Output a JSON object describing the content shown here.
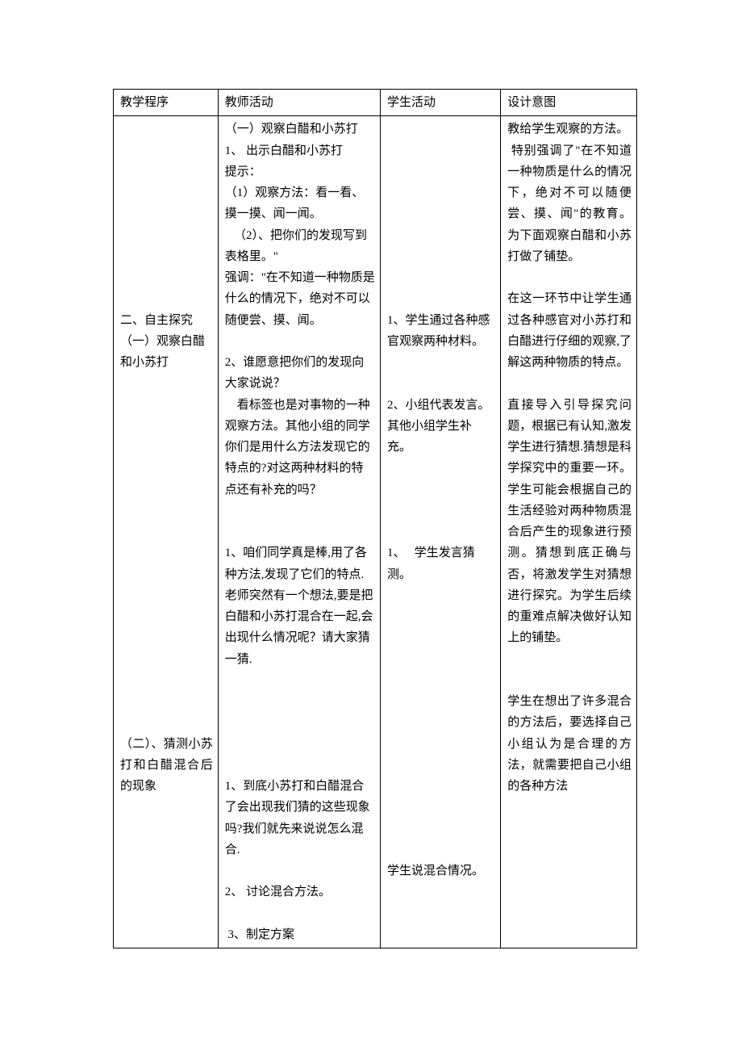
{
  "header": {
    "col1": "教学程序",
    "col2": "教师活动",
    "col3": "学生活动",
    "col4": "设计意图"
  },
  "col1": {
    "sec2_title": "二、自主探究",
    "sec2_sub1": "（一）观察白醋和小苏打",
    "sec2_sub2": "（二）、猜测小苏打和白醋混合后的现象"
  },
  "col2": {
    "obs_title": "（一）观察白醋和小苏打",
    "obs_1": "1、 出示白醋和小苏打",
    "obs_tip": "提示：",
    "obs_m1": "（1）观察方法：看一看、摸一摸、闻一闻。",
    "obs_m2": "   （2）、把你们的发现写到表格里。\"",
    "obs_warn": "强调：\"在不知道一种物质是什么的情况下，绝对不可以随便尝、摸、闻。",
    "obs_2": "2、谁愿意把你们的发现向大家说说？",
    "obs_label": "    看标签也是对事物的一种观察方法。其他小组的同学你们是用什么方法发现它的特点的?对这两种材料的特点还有补充的吗？",
    "guess_1": "1、咱们同学真是棒,用了各种方法,发现了它们的特点.老师突然有一个想法,要是把白醋和小苏打混合在一起,会出现什么情况呢？请大家猜一猜.",
    "mix_1": "1、到底小苏打和白醋混合了会出现我们猜的这些现象吗?我们就先来说说怎么混合.",
    "mix_2": "2、 讨论混合方法。",
    "mix_3": " 3、制定方案"
  },
  "col3": {
    "s1": "1、学生通过各种感官观察两种材料。",
    "s2": "2、小组代表发言。其他小组学生补充。",
    "s3": "1、   学生发言猜测。",
    "s4": "学生说混合情况。"
  },
  "col4": {
    "d1": "教给学生观察的方法。",
    "d1b": " 特别强调了\"在不知道一种物质是什么的情况下，绝对不可以随便尝、摸、闻\"的教育。为下面观察白醋和小苏打做了铺垫。",
    "d2": "在这一环节中让学生通过各种感官对小苏打和白醋进行仔细的观察,了解这两种物质的特点。",
    "d3": "直接导入引导探究问题，根据已有认知,激发学生进行猜想.猜想是科学探究中的重要一环。学生可能会根据自己的生活经验对两种物质混合后产生的现象进行预测。猜想到底正确与否，将激发学生对猜想进行探究。为学生后续的重难点解决做好认知上的铺垫。",
    "d4": "学生在想出了许多混合的方法后，要选择自己小组认为是合理的方法，就需要把自己小组的各种方法"
  }
}
